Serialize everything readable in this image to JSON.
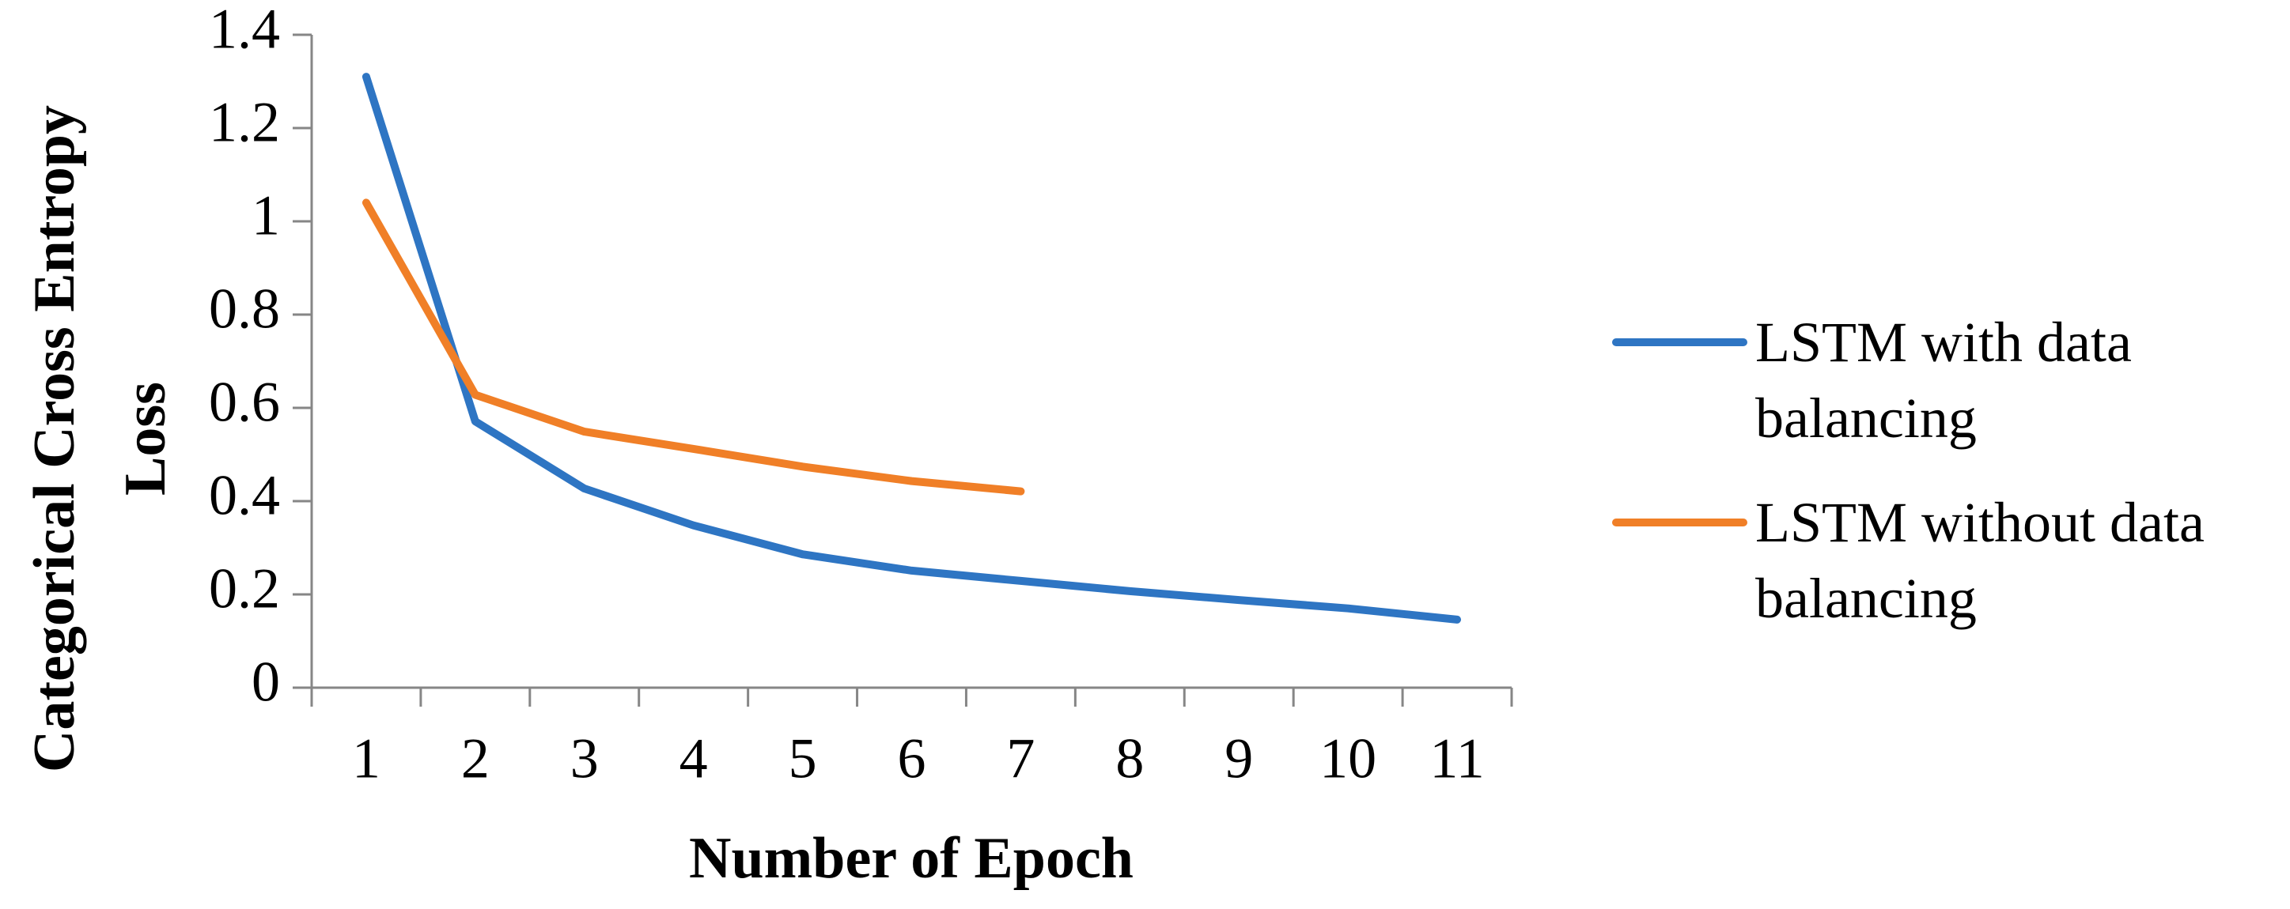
{
  "chart_data": {
    "type": "line",
    "y_label": "Categorical Cross Entropy Loss",
    "x_label": "Number of Epoch",
    "categories": [
      "1",
      "2",
      "3",
      "4",
      "5",
      "6",
      "7",
      "8",
      "9",
      "10",
      "11"
    ],
    "series": [
      {
        "name": "LSTM with data balancing",
        "color": "#2e75c3",
        "values": [
          1.31,
          0.571,
          0.427,
          0.348,
          0.286,
          0.251,
          0.229,
          0.207,
          0.188,
          0.17,
          0.146
        ]
      },
      {
        "name": "LSTM without data balancing",
        "color": "#f07f27",
        "values": [
          1.04,
          0.628,
          0.549,
          0.512,
          0.474,
          0.443,
          0.421,
          null,
          null,
          null,
          null
        ]
      }
    ],
    "ylim": [
      0,
      1.4
    ],
    "yticks": [
      0,
      0.2,
      0.4,
      0.6,
      0.8,
      1,
      1.2,
      1.4
    ],
    "grid": false,
    "legend": "right"
  }
}
